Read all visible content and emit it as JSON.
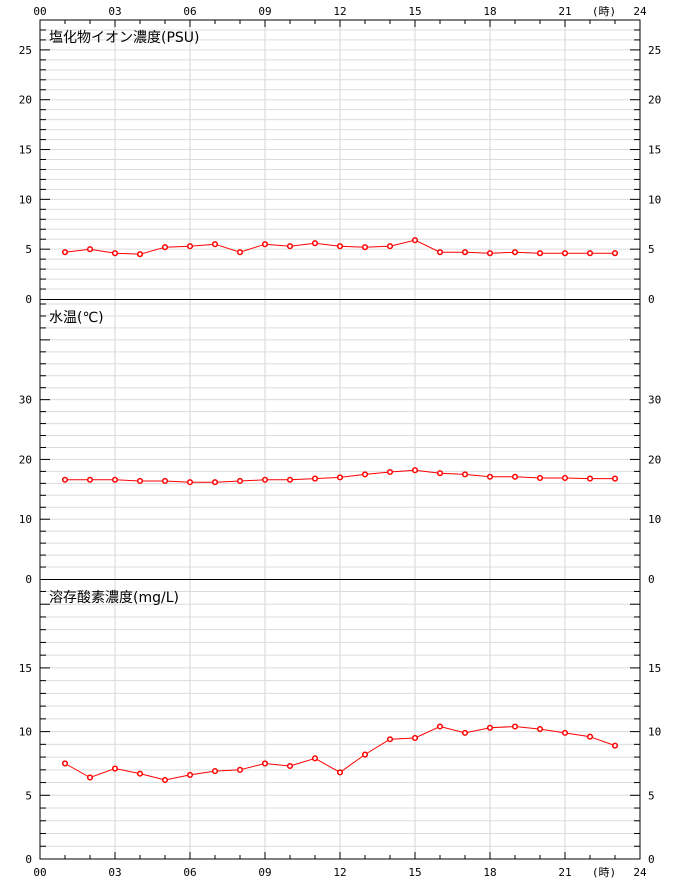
{
  "time_axis": {
    "ticks": [
      "00",
      "03",
      "06",
      "09",
      "12",
      "15",
      "18",
      "21",
      "24"
    ],
    "hour_label": "(時)"
  },
  "chart_data": [
    {
      "type": "line",
      "title": "塩化物イオン濃度(PSU)",
      "x": [
        1,
        2,
        3,
        4,
        5,
        6,
        7,
        8,
        9,
        10,
        11,
        12,
        13,
        14,
        15,
        16,
        17,
        18,
        19,
        20,
        21,
        22,
        23
      ],
      "values": [
        4.7,
        5.0,
        4.6,
        4.5,
        5.2,
        5.3,
        5.5,
        4.7,
        5.5,
        5.3,
        5.6,
        5.3,
        5.2,
        5.3,
        5.9,
        4.7,
        4.7,
        4.6,
        4.7,
        4.6,
        4.6,
        4.6,
        4.6
      ],
      "ylim": [
        0,
        28
      ],
      "y_ticks": [
        "0",
        "5",
        "10",
        "15",
        "20",
        "25"
      ],
      "line_color": "#ff0000",
      "grid": true
    },
    {
      "type": "line",
      "title": "水温(℃)",
      "x": [
        1,
        2,
        3,
        4,
        5,
        6,
        7,
        8,
        9,
        10,
        11,
        12,
        13,
        14,
        15,
        16,
        17,
        18,
        19,
        20,
        21,
        22,
        23
      ],
      "values": [
        16.6,
        16.6,
        16.6,
        16.4,
        16.4,
        16.2,
        16.2,
        16.4,
        16.6,
        16.6,
        16.8,
        17.0,
        17.5,
        17.9,
        18.2,
        17.7,
        17.5,
        17.1,
        17.1,
        16.9,
        16.9,
        16.8,
        16.8
      ],
      "ylim": [
        0,
        46.67
      ],
      "y_ticks": [
        "0",
        "10",
        "20",
        "30"
      ],
      "line_color": "#ff0000",
      "grid": true
    },
    {
      "type": "line",
      "title": "溶存酸素濃度(mg/L)",
      "x": [
        1,
        2,
        3,
        4,
        5,
        6,
        7,
        8,
        9,
        10,
        11,
        12,
        13,
        14,
        15,
        16,
        17,
        18,
        19,
        20,
        21,
        22,
        23
      ],
      "values": [
        7.5,
        6.4,
        7.1,
        6.7,
        6.2,
        6.6,
        6.9,
        7.0,
        7.5,
        7.3,
        7.9,
        6.8,
        8.2,
        9.4,
        9.5,
        10.4,
        9.9,
        10.3,
        10.4,
        10.2,
        9.9,
        9.6,
        8.9
      ],
      "ylim": [
        0,
        21.9
      ],
      "y_ticks": [
        "0",
        "5",
        "10",
        "15"
      ],
      "line_color": "#ff0000",
      "grid": true
    }
  ]
}
